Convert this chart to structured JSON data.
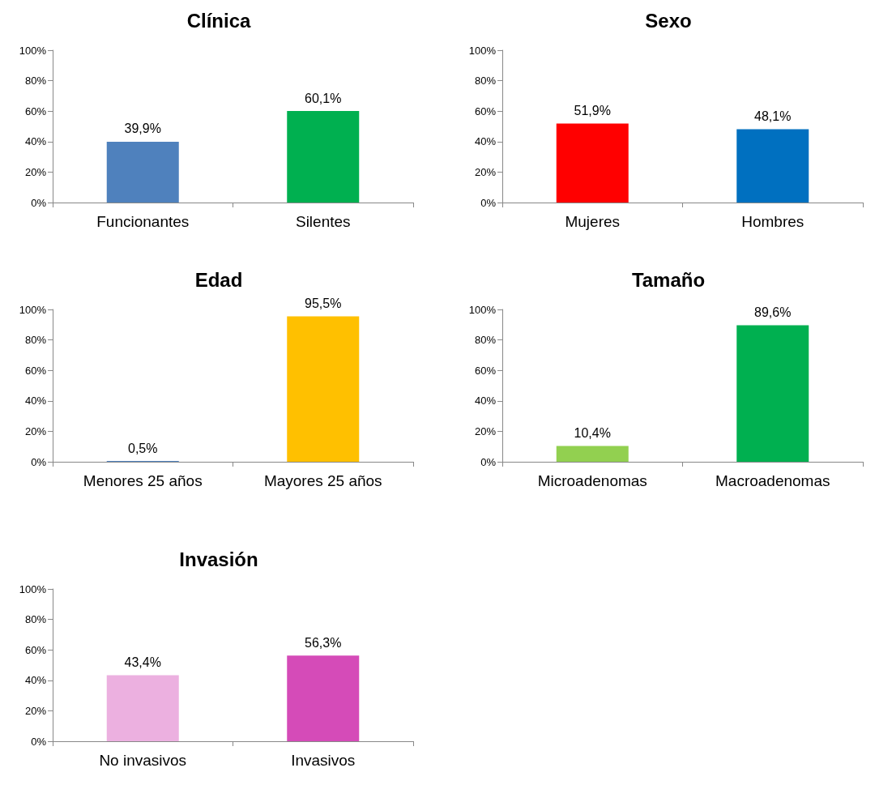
{
  "chart_data": [
    {
      "type": "bar",
      "title": "Clínica",
      "categories": [
        "Funcionantes",
        "Silentes"
      ],
      "values": [
        39.9,
        60.1
      ],
      "colors": [
        "#4f81bd",
        "#00b050"
      ],
      "value_labels": [
        "39,9%",
        "60,1%"
      ],
      "ylim": [
        0,
        100
      ],
      "yticks": [
        {
          "value": 0,
          "label": "0%"
        },
        {
          "value": 20,
          "label": "20%"
        },
        {
          "value": 40,
          "label": "40%"
        },
        {
          "value": 60,
          "label": "60%"
        },
        {
          "value": 80,
          "label": "80%"
        },
        {
          "value": 100,
          "label": "100%"
        }
      ],
      "grid": false
    },
    {
      "type": "bar",
      "title": "Sexo",
      "categories": [
        "Mujeres",
        "Hombres"
      ],
      "values": [
        51.9,
        48.1
      ],
      "colors": [
        "#ff0000",
        "#0070c0"
      ],
      "value_labels": [
        "51,9%",
        "48,1%"
      ],
      "ylim": [
        0,
        100
      ],
      "yticks": [
        {
          "value": 0,
          "label": "0%"
        },
        {
          "value": 20,
          "label": "20%"
        },
        {
          "value": 40,
          "label": "40%"
        },
        {
          "value": 60,
          "label": "60%"
        },
        {
          "value": 80,
          "label": "80%"
        },
        {
          "value": 100,
          "label": "100%"
        }
      ],
      "grid": false
    },
    {
      "type": "bar",
      "title": "Edad",
      "categories": [
        "Menores 25 años",
        "Mayores 25 años"
      ],
      "values": [
        0.5,
        95.5
      ],
      "colors": [
        "#4f81bd",
        "#ffc000"
      ],
      "value_labels": [
        "0,5%",
        "95,5%"
      ],
      "ylim": [
        0,
        100
      ],
      "yticks": [
        {
          "value": 0,
          "label": "0%"
        },
        {
          "value": 20,
          "label": "20%"
        },
        {
          "value": 40,
          "label": "40%"
        },
        {
          "value": 60,
          "label": "60%"
        },
        {
          "value": 80,
          "label": "80%"
        },
        {
          "value": 100,
          "label": "100%"
        }
      ],
      "grid": false
    },
    {
      "type": "bar",
      "title": "Tamaño",
      "categories": [
        "Microadenomas",
        "Macroadenomas"
      ],
      "values": [
        10.4,
        89.6
      ],
      "colors": [
        "#92d050",
        "#00b050"
      ],
      "value_labels": [
        "10,4%",
        "89,6%"
      ],
      "ylim": [
        0,
        100
      ],
      "yticks": [
        {
          "value": 0,
          "label": "0%"
        },
        {
          "value": 20,
          "label": "20%"
        },
        {
          "value": 40,
          "label": "40%"
        },
        {
          "value": 60,
          "label": "60%"
        },
        {
          "value": 80,
          "label": "80%"
        },
        {
          "value": 100,
          "label": "100%"
        }
      ],
      "grid": false
    },
    {
      "type": "bar",
      "title": "Invasión",
      "categories": [
        "No invasivos",
        "Invasivos"
      ],
      "values": [
        43.4,
        56.3
      ],
      "colors": [
        "#ecb0e0",
        "#d54bb8"
      ],
      "value_labels": [
        "43,4%",
        "56,3%"
      ],
      "ylim": [
        0,
        100
      ],
      "yticks": [
        {
          "value": 0,
          "label": "0%"
        },
        {
          "value": 20,
          "label": "20%"
        },
        {
          "value": 40,
          "label": "40%"
        },
        {
          "value": 60,
          "label": "60%"
        },
        {
          "value": 80,
          "label": "80%"
        },
        {
          "value": 100,
          "label": "100%"
        }
      ],
      "grid": false
    }
  ]
}
